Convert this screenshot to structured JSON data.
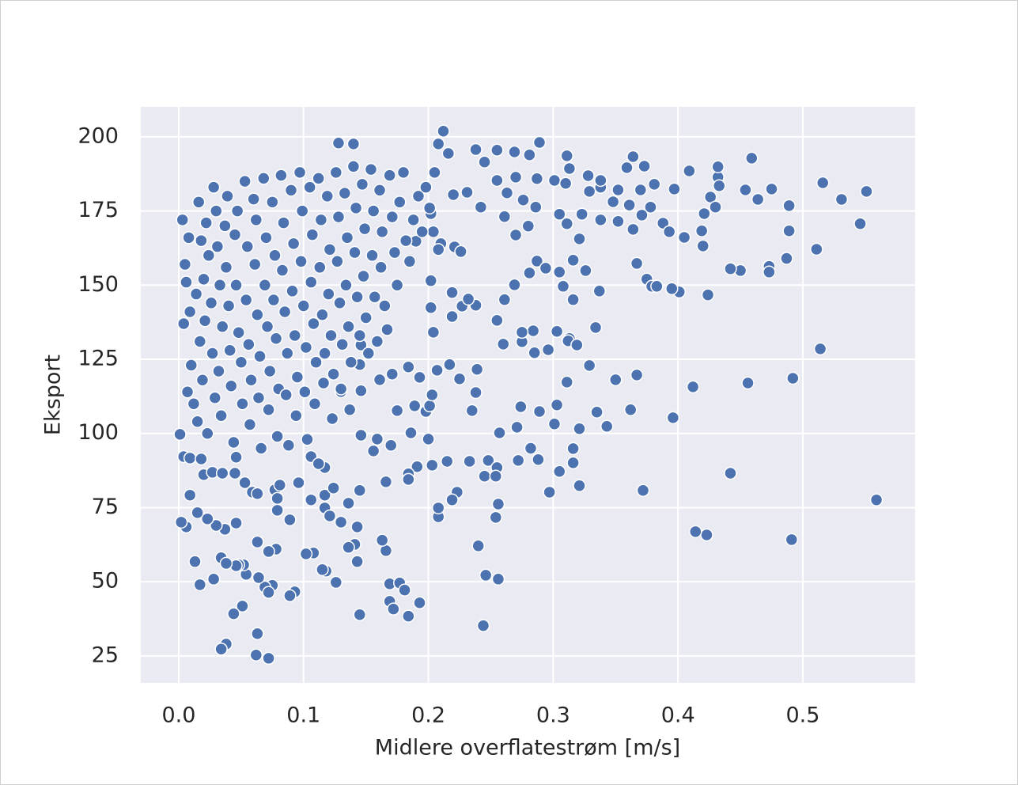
{
  "chart_data": {
    "type": "scatter",
    "x_label": "Midlere overflatestrøm [m/s]",
    "y_label": "Eksport",
    "color": "#4c72b0",
    "background": "#eaeaf2",
    "grid": true,
    "xlim": [
      -0.0304,
      0.59
    ],
    "ylim": [
      15.9,
      210.1
    ],
    "xticks": [
      {
        "value": 0,
        "label": "0.0"
      },
      0.1,
      0.2,
      0.3,
      0.4,
      0.5
    ],
    "yticks": [
      25,
      50,
      75,
      100,
      125,
      150,
      175,
      200
    ],
    "x": [
      0.559,
      0.551,
      0.531,
      0.546,
      0.516,
      0.511,
      0.514,
      0.492,
      0.491,
      0.489,
      0.489,
      0.487,
      0.473,
      0.473,
      0.475,
      0.464,
      0.459,
      0.454,
      0.456,
      0.45,
      0.442,
      0.442,
      0.423,
      0.414,
      0.412,
      0.409,
      0.405,
      0.401,
      0.424,
      0.395,
      0.396,
      0.397,
      0.419,
      0.42,
      0.421,
      0.426,
      0.432,
      0.432,
      0.433,
      0.43,
      0.364,
      0.372,
      0.367,
      0.362,
      0.35,
      0.343,
      0.335,
      0.329,
      0.321,
      0.321,
      0.316,
      0.316,
      0.311,
      0.305,
      0.297,
      0.301,
      0.303,
      0.303,
      0.313,
      0.334,
      0.288,
      0.289,
      0.282,
      0.274,
      0.272,
      0.271,
      0.257,
      0.248,
      0.255,
      0.245,
      0.254,
      0.256,
      0.254,
      0.24,
      0.246,
      0.256,
      0.244,
      0.235,
      0.233,
      0.238,
      0.239,
      0.215,
      0.223,
      0.219,
      0.208,
      0.208,
      0.203,
      0.191,
      0.184,
      0.184,
      0.2,
      0.198,
      0.201,
      0.203,
      0.189,
      0.175,
      0.186,
      0.17,
      0.156,
      0.159,
      0.146,
      0.166,
      0.166,
      0.163,
      0.169,
      0.177,
      0.181,
      0.169,
      0.172,
      0.184,
      0.193,
      0.145,
      0.143,
      0.141,
      0.143,
      0.13,
      0.136,
      0.136,
      0.145,
      0.126,
      0.118,
      0.115,
      0.117,
      0.117,
      0.124,
      0.117,
      0.106,
      0.108,
      0.102,
      0.093,
      0.089,
      0.078,
      0.072,
      0.075,
      0.069,
      0.072,
      0.072,
      0.063,
      0.062,
      0.063,
      0.064,
      0.054,
      0.052,
      0.048,
      0.051,
      0.044,
      0.046,
      0.038,
      0.034,
      0.034,
      0.038,
      0.046,
      0.037,
      0.03,
      0.023,
      0.015,
      0.028,
      0.017,
      0.013,
      0.006,
      0.002,
      0.009,
      0.001,
      0.004,
      0.009,
      0.018,
      0.02,
      0.027,
      0.035,
      0.045,
      0.046,
      0.053,
      0.059,
      0.063,
      0.077,
      0.079,
      0.081,
      0.079,
      0.089,
      0.096,
      0.121,
      0.106,
      0.112,
      0.212,
      0.208,
      0.289,
      0.128,
      0.14,
      0.238,
      0.255,
      0.269,
      0.281,
      0.311,
      0.216,
      0.245,
      0.313,
      0.21,
      0.221,
      0.226,
      0.242,
      0.261,
      0.276,
      0.286,
      0.27,
      0.28,
      0.287,
      0.294,
      0.305,
      0.316,
      0.326,
      0.337,
      0.308,
      0.316,
      0.281,
      0.269,
      0.261,
      0.275,
      0.285,
      0.296,
      0.312,
      0.319,
      0.284,
      0.275,
      0.26,
      0.255,
      0.238,
      0.227,
      0.219,
      0.204,
      0.202,
      0.202,
      0.219,
      0.232,
      0.217,
      0.225,
      0.207,
      0.171,
      0.184,
      0.193,
      0.161,
      0.145,
      0.13,
      0.146,
      0.146,
      0.323,
      0.329,
      0.338,
      0.348,
      0.352,
      0.361,
      0.37,
      0.378,
      0.381,
      0.388,
      0.393,
      0.371,
      0.364,
      0.352,
      0.338,
      0.321,
      0.311,
      0.305,
      0.367,
      0.375,
      0.379,
      0.383,
      0.373,
      0.359,
      0.338,
      0.301,
      0.31,
      0.328,
      0.287,
      0.27,
      0.255,
      0.263,
      0.231,
      0.22,
      0.202,
      0.204,
      0.19,
      0.003,
      0.005,
      0.008,
      0.006,
      0.004,
      0.009,
      0.01,
      0.007,
      0.012,
      0.015,
      0.016,
      0.018,
      0.014,
      0.017,
      0.02,
      0.022,
      0.024,
      0.021,
      0.019,
      0.023,
      0.026,
      0.028,
      0.03,
      0.027,
      0.029,
      0.031,
      0.033,
      0.035,
      0.032,
      0.034,
      0.037,
      0.039,
      0.038,
      0.04,
      0.041,
      0.042,
      0.044,
      0.045,
      0.047,
      0.046,
      0.048,
      0.05,
      0.051,
      0.053,
      0.055,
      0.054,
      0.056,
      0.058,
      0.057,
      0.06,
      0.062,
      0.061,
      0.063,
      0.065,
      0.064,
      0.066,
      0.068,
      0.07,
      0.069,
      0.071,
      0.073,
      0.072,
      0.075,
      0.077,
      0.076,
      0.078,
      0.08,
      0.079,
      0.082,
      0.084,
      0.083,
      0.085,
      0.087,
      0.086,
      0.088,
      0.09,
      0.092,
      0.091,
      0.093,
      0.095,
      0.094,
      0.097,
      0.099,
      0.098,
      0.1,
      0.102,
      0.101,
      0.103,
      0.105,
      0.107,
      0.106,
      0.108,
      0.11,
      0.109,
      0.112,
      0.114,
      0.113,
      0.115,
      0.117,
      0.116,
      0.119,
      0.121,
      0.12,
      0.122,
      0.124,
      0.123,
      0.126,
      0.128,
      0.127,
      0.129,
      0.131,
      0.13,
      0.133,
      0.135,
      0.134,
      0.136,
      0.138,
      0.137,
      0.14,
      0.142,
      0.141,
      0.143,
      0.145,
      0.147,
      0.149,
      0.148,
      0.15,
      0.152,
      0.154,
      0.156,
      0.155,
      0.157,
      0.159,
      0.161,
      0.163,
      0.162,
      0.165,
      0.167,
      0.169,
      0.171,
      0.173,
      0.175,
      0.177,
      0.18,
      0.182,
      0.185,
      0.188,
      0.192,
      0.195,
      0.198,
      0.201,
      0.205,
      0.208
    ],
    "values": [
      77.6,
      181.6,
      178.9,
      170.7,
      184.5,
      162.1,
      128.5,
      118.6,
      64.2,
      176.8,
      168.3,
      159.0,
      156.3,
      154.4,
      182.4,
      178.9,
      192.8,
      182.1,
      117.0,
      154.9,
      155.5,
      86.6,
      65.8,
      66.9,
      115.7,
      188.5,
      166.1,
      147.7,
      146.7,
      148.8,
      105.3,
      182.4,
      168.3,
      163.2,
      174.1,
      179.7,
      186.4,
      189.9,
      183.5,
      176.3,
      193.3,
      80.8,
      119.7,
      108.0,
      118.1,
      102.4,
      107.2,
      122.9,
      82.4,
      101.6,
      90.1,
      94.9,
      117.3,
      87.2,
      80.2,
      103.2,
      109.6,
      134.4,
      132.0,
      135.7,
      91.2,
      107.4,
      95.0,
      109.0,
      90.9,
      102.1,
      100.2,
      90.9,
      88.5,
      85.6,
      85.6,
      76.2,
      71.7,
      62.1,
      52.2,
      50.9,
      35.2,
      107.7,
      90.6,
      113.8,
      121.6,
      90.6,
      80.2,
      77.6,
      71.9,
      74.9,
      89.3,
      88.8,
      86.4,
      84.5,
      98.1,
      107.4,
      109.3,
      113.0,
      109.3,
      107.7,
      100.2,
      96.0,
      94.1,
      98.1,
      99.4,
      83.7,
      60.5,
      64.0,
      49.3,
      49.6,
      47.2,
      43.4,
      40.8,
      38.4,
      42.9,
      38.9,
      56.8,
      62.6,
      68.5,
      70.1,
      61.6,
      76.5,
      80.8,
      49.8,
      53.6,
      54.1,
      79.2,
      74.9,
      81.6,
      88.5,
      77.6,
      59.7,
      59.4,
      46.6,
      45.3,
      61.0,
      60.2,
      48.8,
      48.2,
      46.4,
      24.2,
      32.5,
      25.3,
      63.4,
      51.4,
      52.5,
      55.7,
      55.7,
      41.8,
      39.2,
      55.4,
      29.0,
      27.3,
      58.1,
      56.2,
      69.8,
      67.7,
      69.0,
      71.2,
      73.3,
      50.9,
      49.0,
      56.8,
      68.5,
      70.1,
      79.2,
      99.7,
      92.2,
      91.7,
      91.4,
      86.1,
      86.9,
      86.6,
      86.6,
      92.0,
      83.4,
      80.2,
      79.7,
      81.0,
      78.1,
      82.6,
      74.1,
      70.9,
      83.4,
      72.2,
      92.2,
      89.8,
      201.9,
      197.6,
      198.1,
      197.9,
      197.6,
      195.7,
      195.5,
      194.9,
      193.9,
      193.6,
      194.4,
      191.5,
      189.3,
      164.0,
      162.9,
      161.3,
      176.3,
      173.1,
      178.7,
      176.3,
      166.9,
      169.9,
      158.1,
      155.7,
      154.4,
      158.4,
      154.9,
      148.0,
      149.6,
      145.1,
      154.1,
      150.1,
      145.1,
      130.9,
      127.2,
      128.2,
      131.2,
      129.8,
      134.6,
      134.1,
      130.1,
      138.1,
      143.2,
      142.9,
      139.4,
      134.1,
      142.4,
      151.5,
      147.5,
      145.3,
      123.2,
      118.4,
      121.3,
      120.0,
      122.4,
      118.9,
      118.1,
      123.2,
      114.1,
      114.4,
      129.8,
      173.9,
      181.6,
      183.0,
      178.1,
      182.1,
      177.0,
      182.1,
      176.3,
      184.0,
      170.9,
      168.0,
      173.6,
      168.8,
      171.5,
      172.0,
      165.6,
      170.7,
      173.9,
      157.3,
      152.0,
      149.6,
      149.6,
      190.1,
      189.6,
      185.3,
      185.3,
      184.3,
      186.9,
      185.9,
      186.4,
      185.3,
      181.1,
      181.3,
      180.5,
      174.1,
      168.0,
      164.8,
      172,
      157,
      166,
      151,
      137,
      141,
      123,
      114,
      110,
      104,
      178,
      165,
      147,
      131,
      152,
      171,
      160,
      138,
      118,
      100,
      144,
      183,
      175,
      127,
      112,
      163,
      150,
      136,
      121,
      106,
      170,
      180,
      156,
      143,
      128,
      116,
      97,
      167,
      175,
      150,
      134,
      124,
      110,
      185,
      163,
      145,
      130,
      118,
      103,
      179,
      172,
      157,
      140,
      126,
      112,
      95,
      186,
      166,
      150,
      136,
      121,
      108,
      178,
      160,
      145,
      132,
      115,
      99,
      187,
      171,
      155,
      141,
      127,
      113,
      96,
      182,
      164,
      148,
      133,
      119,
      106,
      188,
      175,
      158,
      143,
      129,
      114,
      98,
      183,
      167,
      151,
      137,
      124,
      110,
      186,
      172,
      156,
      140,
      127,
      117,
      180,
      162,
      147,
      133,
      120,
      105,
      188,
      173,
      158,
      144,
      130,
      115,
      181,
      166,
      150,
      136,
      124,
      108,
      190,
      176,
      161,
      146,
      133,
      184,
      169,
      153,
      139,
      127,
      189,
      175,
      160,
      146,
      131,
      182,
      168,
      156,
      143,
      135,
      187,
      173,
      161,
      150,
      178,
      188,
      165,
      158,
      172,
      180,
      168,
      183,
      176,
      188,
      162
    ]
  }
}
